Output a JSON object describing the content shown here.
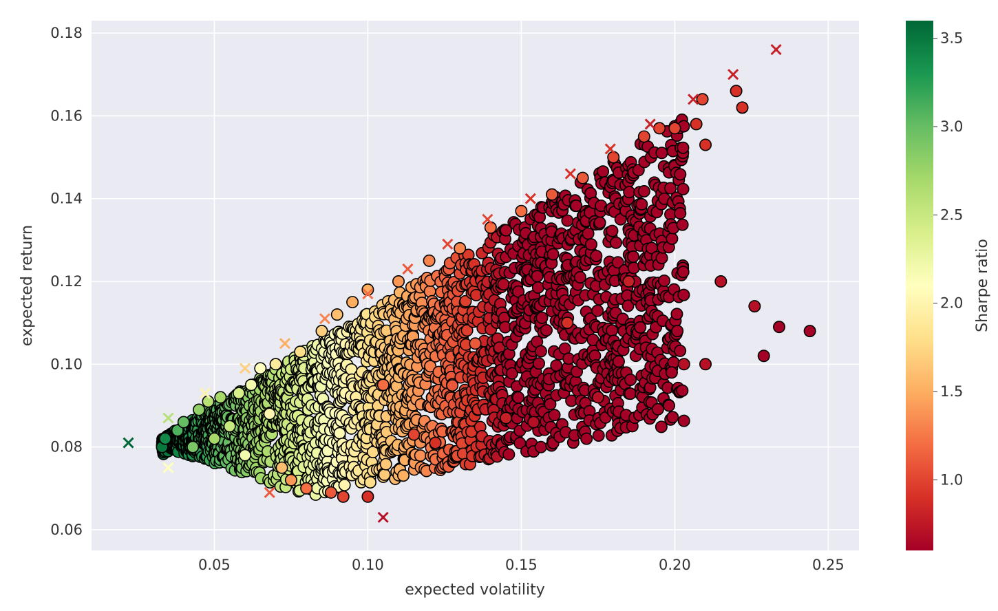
{
  "chart_data": {
    "type": "scatter",
    "title": "",
    "xlabel": "expected volatility",
    "ylabel": "expected return",
    "xlim": [
      0.01,
      0.26
    ],
    "ylim": [
      0.055,
      0.183
    ],
    "xticks": [
      0.05,
      0.1,
      0.15,
      0.2,
      0.25
    ],
    "xtick_labels": [
      "0.05",
      "0.10",
      "0.15",
      "0.20",
      "0.25"
    ],
    "yticks": [
      0.06,
      0.08,
      0.1,
      0.12,
      0.14,
      0.16,
      0.18
    ],
    "ytick_labels": [
      "0.06",
      "0.08",
      "0.10",
      "0.12",
      "0.14",
      "0.16",
      "0.18"
    ],
    "grid": true,
    "background_color": "#eaeaf2",
    "colormap": "RdYlGn",
    "colorbar": {
      "label": "Sharpe ratio",
      "range": [
        0.6,
        3.6
      ],
      "ticks": [
        1.0,
        1.5,
        2.0,
        2.5,
        3.0,
        3.5
      ],
      "tick_labels": [
        "1.0",
        "1.5",
        "2.0",
        "2.5",
        "3.0",
        "3.5"
      ]
    },
    "series": [
      {
        "marker": "circle",
        "edge_color": "#000000",
        "approximate_count": 10000,
        "points_sample": [
          [
            0.033,
            0.08,
            3.5
          ],
          [
            0.034,
            0.082,
            3.4
          ],
          [
            0.038,
            0.084,
            3.1
          ],
          [
            0.04,
            0.086,
            3.0
          ],
          [
            0.043,
            0.08,
            2.9
          ],
          [
            0.045,
            0.089,
            2.8
          ],
          [
            0.048,
            0.091,
            2.6
          ],
          [
            0.05,
            0.082,
            2.7
          ],
          [
            0.052,
            0.092,
            2.7
          ],
          [
            0.055,
            0.085,
            2.5
          ],
          [
            0.058,
            0.093,
            2.4
          ],
          [
            0.06,
            0.078,
            2.2
          ],
          [
            0.062,
            0.095,
            2.2
          ],
          [
            0.065,
            0.099,
            2.1
          ],
          [
            0.068,
            0.088,
            2.0
          ],
          [
            0.07,
            0.1,
            1.9
          ],
          [
            0.072,
            0.075,
            1.6
          ],
          [
            0.075,
            0.072,
            1.4
          ],
          [
            0.078,
            0.103,
            1.8
          ],
          [
            0.08,
            0.07,
            1.2
          ],
          [
            0.085,
            0.108,
            1.7
          ],
          [
            0.088,
            0.069,
            1.1
          ],
          [
            0.09,
            0.112,
            1.6
          ],
          [
            0.092,
            0.068,
            1.0
          ],
          [
            0.095,
            0.115,
            1.5
          ],
          [
            0.1,
            0.068,
            0.9
          ],
          [
            0.1,
            0.118,
            1.5
          ],
          [
            0.105,
            0.095,
            1.2
          ],
          [
            0.11,
            0.12,
            1.4
          ],
          [
            0.115,
            0.083,
            1.0
          ],
          [
            0.12,
            0.125,
            1.3
          ],
          [
            0.122,
            0.081,
            0.9
          ],
          [
            0.13,
            0.128,
            1.3
          ],
          [
            0.135,
            0.105,
            1.1
          ],
          [
            0.14,
            0.133,
            1.2
          ],
          [
            0.145,
            0.087,
            0.8
          ],
          [
            0.15,
            0.137,
            1.2
          ],
          [
            0.154,
            0.086,
            0.7
          ],
          [
            0.16,
            0.141,
            1.1
          ],
          [
            0.165,
            0.11,
            0.9
          ],
          [
            0.17,
            0.145,
            1.1
          ],
          [
            0.175,
            0.092,
            0.7
          ],
          [
            0.18,
            0.15,
            1.0
          ],
          [
            0.185,
            0.12,
            0.8
          ],
          [
            0.19,
            0.155,
            1.0
          ],
          [
            0.195,
            0.157,
            1.0
          ],
          [
            0.199,
            0.098,
            0.6
          ],
          [
            0.2,
            0.157,
            1.0
          ],
          [
            0.203,
            0.1,
            0.7
          ],
          [
            0.207,
            0.158,
            0.9
          ],
          [
            0.209,
            0.164,
            1.0
          ],
          [
            0.21,
            0.153,
            0.9
          ],
          [
            0.21,
            0.1,
            0.7
          ],
          [
            0.215,
            0.12,
            0.7
          ],
          [
            0.22,
            0.166,
            0.9
          ],
          [
            0.222,
            0.162,
            0.9
          ],
          [
            0.226,
            0.114,
            0.7
          ],
          [
            0.229,
            0.102,
            0.6
          ],
          [
            0.234,
            0.109,
            0.6
          ],
          [
            0.244,
            0.108,
            0.6
          ]
        ]
      },
      {
        "marker": "x",
        "points": [
          [
            0.022,
            0.081,
            3.6
          ],
          [
            0.035,
            0.087,
            2.6
          ],
          [
            0.035,
            0.075,
            2.1
          ],
          [
            0.047,
            0.093,
            2.0
          ],
          [
            0.06,
            0.099,
            1.7
          ],
          [
            0.073,
            0.105,
            1.5
          ],
          [
            0.068,
            0.069,
            1.1
          ],
          [
            0.086,
            0.111,
            1.3
          ],
          [
            0.1,
            0.117,
            1.2
          ],
          [
            0.113,
            0.123,
            1.1
          ],
          [
            0.105,
            0.063,
            0.7
          ],
          [
            0.126,
            0.129,
            1.0
          ],
          [
            0.139,
            0.135,
            1.0
          ],
          [
            0.153,
            0.14,
            0.9
          ],
          [
            0.166,
            0.146,
            0.9
          ],
          [
            0.179,
            0.152,
            0.9
          ],
          [
            0.192,
            0.158,
            0.8
          ],
          [
            0.206,
            0.164,
            0.8
          ],
          [
            0.219,
            0.17,
            0.8
          ],
          [
            0.233,
            0.176,
            0.8
          ]
        ]
      }
    ]
  }
}
